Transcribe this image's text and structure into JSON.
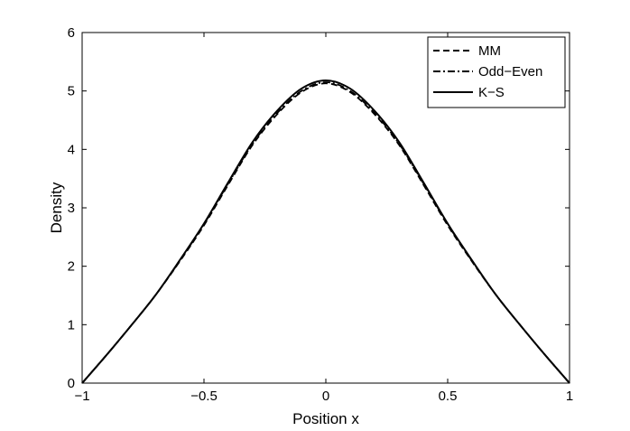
{
  "chart_data": {
    "type": "line",
    "title": "",
    "xlabel": "Position x",
    "ylabel": "Density",
    "xlim": [
      -1,
      1
    ],
    "ylim": [
      0,
      6
    ],
    "xticks": [
      -1,
      -0.5,
      0,
      0.5,
      1
    ],
    "xtick_labels": [
      "−1",
      "−0.5",
      "0",
      "0.5",
      "1"
    ],
    "yticks": [
      0,
      1,
      2,
      3,
      4,
      5,
      6
    ],
    "ytick_labels": [
      "0",
      "1",
      "2",
      "3",
      "4",
      "5",
      "6"
    ],
    "grid": false,
    "legend_position": "top-right",
    "x": [
      -1,
      -0.9,
      -0.8,
      -0.7,
      -0.6,
      -0.5,
      -0.4,
      -0.3,
      -0.2,
      -0.1,
      0,
      0.1,
      0.2,
      0.3,
      0.4,
      0.5,
      0.6,
      0.7,
      0.8,
      0.9,
      1
    ],
    "series": [
      {
        "name": "MM",
        "style": "dashed",
        "color": "#000000",
        "values": [
          0,
          0.48,
          0.98,
          1.5,
          2.08,
          2.7,
          3.4,
          4.08,
          4.6,
          4.98,
          5.13,
          4.98,
          4.6,
          4.08,
          3.4,
          2.7,
          2.08,
          1.5,
          0.98,
          0.48,
          0
        ]
      },
      {
        "name": "Odd−Even",
        "style": "dashdot",
        "color": "#000000",
        "values": [
          0,
          0.48,
          0.98,
          1.5,
          2.09,
          2.72,
          3.42,
          4.1,
          4.62,
          5.0,
          5.15,
          5.0,
          4.62,
          4.1,
          3.42,
          2.72,
          2.09,
          1.5,
          0.98,
          0.48,
          0
        ]
      },
      {
        "name": "K−S",
        "style": "solid",
        "color": "#000000",
        "values": [
          0,
          0.48,
          0.98,
          1.5,
          2.1,
          2.73,
          3.44,
          4.13,
          4.66,
          5.04,
          5.18,
          5.04,
          4.66,
          4.13,
          3.44,
          2.73,
          2.1,
          1.5,
          0.98,
          0.48,
          0
        ]
      }
    ]
  }
}
